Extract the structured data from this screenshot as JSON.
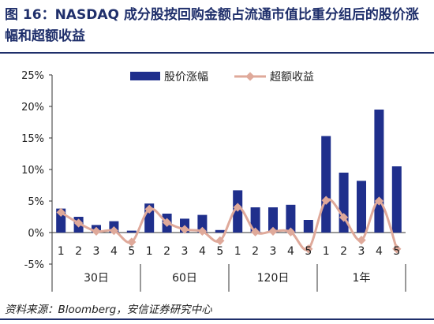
{
  "title": "图 16：NASDAQ 成分股按回购金额占流通市值比重分组后的股价涨幅和超额收益",
  "source": "资料来源：Bloomberg，安信证券研究中心",
  "colors": {
    "bar": "#1f2f8c",
    "line": "#dfa99a",
    "title": "#1f2f6b"
  },
  "chart_data": {
    "type": "bar",
    "groups": [
      "30日",
      "60日",
      "120日",
      "1年"
    ],
    "categories": [
      "1",
      "2",
      "3",
      "4",
      "5",
      "1",
      "2",
      "3",
      "4",
      "5",
      "1",
      "2",
      "3",
      "4",
      "5",
      "1",
      "2",
      "3",
      "4",
      "5"
    ],
    "ylim": [
      -5,
      25
    ],
    "yticks": [
      "25%",
      "20%",
      "15%",
      "10%",
      "5%",
      "0%",
      "-5%"
    ],
    "grid": false,
    "legend_position": "top-center",
    "series": [
      {
        "name": "股价涨幅",
        "type": "bar",
        "values": [
          3.8,
          2.5,
          1.2,
          1.8,
          0.3,
          4.6,
          3.0,
          2.2,
          2.8,
          0.4,
          6.7,
          4.0,
          4.0,
          4.4,
          2.0,
          15.3,
          9.5,
          8.2,
          19.5,
          10.5
        ]
      },
      {
        "name": "超额收益",
        "type": "line",
        "values": [
          3.2,
          1.5,
          0.2,
          0.3,
          -1.5,
          3.7,
          1.6,
          0.5,
          0.2,
          -1.3,
          4.0,
          0.1,
          0.2,
          0.1,
          -2.6,
          5.1,
          2.4,
          -1.2,
          5.0,
          -2.6
        ]
      }
    ]
  }
}
